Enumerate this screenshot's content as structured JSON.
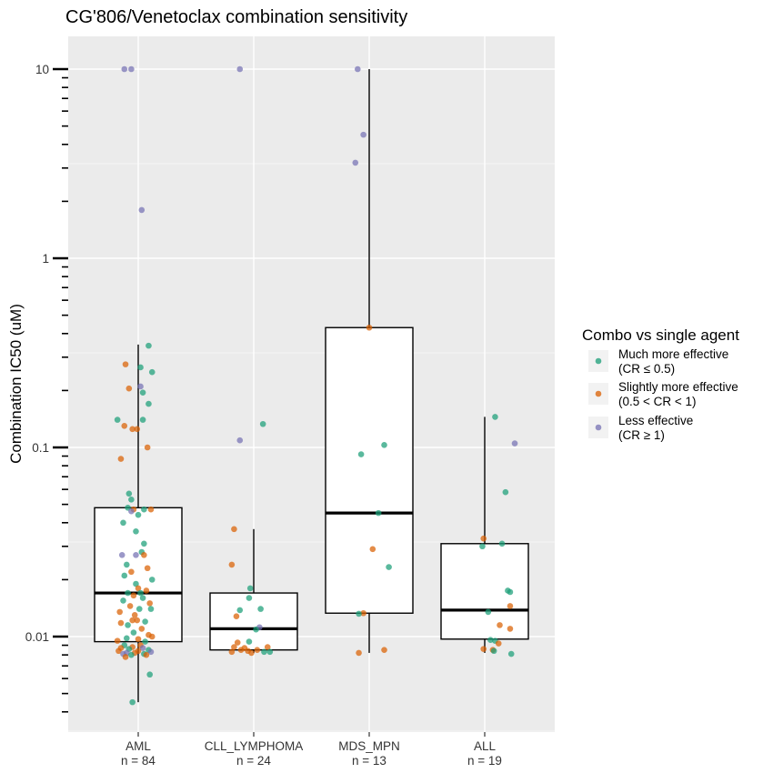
{
  "chart_data": {
    "type": "box",
    "title": "CG'806/Venetoclax combination sensitivity",
    "ylabel": "Combination IC50 (uM)",
    "xlabel": "",
    "yscale": "log10",
    "ylim": [
      0.003,
      13
    ],
    "y_ticks": [
      0.01,
      0.1,
      1,
      10
    ],
    "y_tick_labels": [
      "0.01",
      "0.1",
      "1",
      "10"
    ],
    "grid": true,
    "categories": [
      {
        "name": "AML",
        "n_label": "n = 84"
      },
      {
        "name": "CLL_LYMPHOMA",
        "n_label": "n = 24"
      },
      {
        "name": "MDS_MPN",
        "n_label": "n = 13"
      },
      {
        "name": "ALL",
        "n_label": "n = 19"
      }
    ],
    "boxes": [
      {
        "category": "AML",
        "q1": 0.0094,
        "median": 0.017,
        "q3": 0.048,
        "whisker_low": 0.0045,
        "whisker_high": 0.35
      },
      {
        "category": "CLL_LYMPHOMA",
        "q1": 0.0085,
        "median": 0.011,
        "q3": 0.017,
        "whisker_low": 0.0082,
        "whisker_high": 0.037
      },
      {
        "category": "MDS_MPN",
        "q1": 0.0133,
        "median": 0.045,
        "q3": 0.43,
        "whisker_low": 0.0082,
        "whisker_high": 10
      },
      {
        "category": "ALL",
        "q1": 0.0097,
        "median": 0.0138,
        "q3": 0.031,
        "whisker_low": 0.0082,
        "whisker_high": 0.145
      }
    ],
    "legend": {
      "title": "Combo vs single agent",
      "placement": "right",
      "entries": [
        {
          "key": "much",
          "label_line1": "Much more effective",
          "label_line2": "(CR ≤ 0.5)",
          "color": "#1b9e77"
        },
        {
          "key": "slightly",
          "label_line1": "Slightly more effective",
          "label_line2": "(0.5 < CR < 1)",
          "color": "#d95f02"
        },
        {
          "key": "less",
          "label_line1": "Less effective",
          "label_line2": "(CR ≥ 1)",
          "color": "#7570b3"
        }
      ]
    },
    "points": [
      {
        "cat": 0,
        "jitter": -0.12,
        "y": 10,
        "group": "less"
      },
      {
        "cat": 0,
        "jitter": -0.06,
        "y": 10,
        "group": "less"
      },
      {
        "cat": 0,
        "jitter": 0.03,
        "y": 1.8,
        "group": "less"
      },
      {
        "cat": 0,
        "jitter": 0.09,
        "y": 0.345,
        "group": "much"
      },
      {
        "cat": 0,
        "jitter": -0.11,
        "y": 0.275,
        "group": "slightly"
      },
      {
        "cat": 0,
        "jitter": 0.02,
        "y": 0.265,
        "group": "much"
      },
      {
        "cat": 0,
        "jitter": 0.12,
        "y": 0.25,
        "group": "much"
      },
      {
        "cat": 0,
        "jitter": 0.02,
        "y": 0.21,
        "group": "less"
      },
      {
        "cat": 0,
        "jitter": -0.08,
        "y": 0.205,
        "group": "slightly"
      },
      {
        "cat": 0,
        "jitter": 0.04,
        "y": 0.195,
        "group": "much"
      },
      {
        "cat": 0,
        "jitter": 0.09,
        "y": 0.17,
        "group": "much"
      },
      {
        "cat": 0,
        "jitter": -0.18,
        "y": 0.14,
        "group": "much"
      },
      {
        "cat": 0,
        "jitter": 0.04,
        "y": 0.14,
        "group": "much"
      },
      {
        "cat": 0,
        "jitter": -0.12,
        "y": 0.13,
        "group": "slightly"
      },
      {
        "cat": 0,
        "jitter": -0.05,
        "y": 0.125,
        "group": "slightly"
      },
      {
        "cat": 0,
        "jitter": -0.01,
        "y": 0.125,
        "group": "slightly"
      },
      {
        "cat": 0,
        "jitter": 0.08,
        "y": 0.1,
        "group": "slightly"
      },
      {
        "cat": 0,
        "jitter": -0.15,
        "y": 0.087,
        "group": "slightly"
      },
      {
        "cat": 0,
        "jitter": -0.08,
        "y": 0.057,
        "group": "much"
      },
      {
        "cat": 0,
        "jitter": -0.06,
        "y": 0.053,
        "group": "much"
      },
      {
        "cat": 0,
        "jitter": -0.09,
        "y": 0.048,
        "group": "much"
      },
      {
        "cat": 0,
        "jitter": -0.04,
        "y": 0.047,
        "group": "slightly"
      },
      {
        "cat": 0,
        "jitter": -0.06,
        "y": 0.046,
        "group": "less"
      },
      {
        "cat": 0,
        "jitter": 0.0,
        "y": 0.044,
        "group": "much"
      },
      {
        "cat": 0,
        "jitter": 0.05,
        "y": 0.047,
        "group": "much"
      },
      {
        "cat": 0,
        "jitter": -0.13,
        "y": 0.04,
        "group": "much"
      },
      {
        "cat": 0,
        "jitter": 0.11,
        "y": 0.047,
        "group": "slightly"
      },
      {
        "cat": 0,
        "jitter": -0.02,
        "y": 0.036,
        "group": "much"
      },
      {
        "cat": 0,
        "jitter": 0.05,
        "y": 0.031,
        "group": "much"
      },
      {
        "cat": 0,
        "jitter": 0.03,
        "y": 0.028,
        "group": "much"
      },
      {
        "cat": 0,
        "jitter": -0.14,
        "y": 0.027,
        "group": "less"
      },
      {
        "cat": 0,
        "jitter": -0.02,
        "y": 0.027,
        "group": "less"
      },
      {
        "cat": 0,
        "jitter": 0.05,
        "y": 0.027,
        "group": "slightly"
      },
      {
        "cat": 0,
        "jitter": -0.1,
        "y": 0.024,
        "group": "much"
      },
      {
        "cat": 0,
        "jitter": 0.08,
        "y": 0.023,
        "group": "slightly"
      },
      {
        "cat": 0,
        "jitter": -0.06,
        "y": 0.022,
        "group": "slightly"
      },
      {
        "cat": 0,
        "jitter": -0.12,
        "y": 0.021,
        "group": "much"
      },
      {
        "cat": 0,
        "jitter": 0.12,
        "y": 0.02,
        "group": "much"
      },
      {
        "cat": 0,
        "jitter": -0.02,
        "y": 0.019,
        "group": "much"
      },
      {
        "cat": 0,
        "jitter": 0.0,
        "y": 0.018,
        "group": "slightly"
      },
      {
        "cat": 0,
        "jitter": -0.09,
        "y": 0.017,
        "group": "much"
      },
      {
        "cat": 0,
        "jitter": 0.02,
        "y": 0.017,
        "group": "much"
      },
      {
        "cat": 0,
        "jitter": 0.07,
        "y": 0.0175,
        "group": "slightly"
      },
      {
        "cat": 0,
        "jitter": -0.04,
        "y": 0.0165,
        "group": "slightly"
      },
      {
        "cat": 0,
        "jitter": 0.04,
        "y": 0.016,
        "group": "much"
      },
      {
        "cat": 0,
        "jitter": -0.13,
        "y": 0.0155,
        "group": "much"
      },
      {
        "cat": 0,
        "jitter": 0.1,
        "y": 0.015,
        "group": "slightly"
      },
      {
        "cat": 0,
        "jitter": -0.07,
        "y": 0.0145,
        "group": "slightly"
      },
      {
        "cat": 0,
        "jitter": 0.01,
        "y": 0.014,
        "group": "much"
      },
      {
        "cat": 0,
        "jitter": 0.11,
        "y": 0.014,
        "group": "much"
      },
      {
        "cat": 0,
        "jitter": -0.16,
        "y": 0.0135,
        "group": "slightly"
      },
      {
        "cat": 0,
        "jitter": -0.03,
        "y": 0.013,
        "group": "slightly"
      },
      {
        "cat": 0,
        "jitter": -0.05,
        "y": 0.0122,
        "group": "slightly"
      },
      {
        "cat": 0,
        "jitter": -0.01,
        "y": 0.0122,
        "group": "slightly"
      },
      {
        "cat": 0,
        "jitter": 0.06,
        "y": 0.012,
        "group": "much"
      },
      {
        "cat": 0,
        "jitter": -0.15,
        "y": 0.0118,
        "group": "slightly"
      },
      {
        "cat": 0,
        "jitter": -0.09,
        "y": 0.0115,
        "group": "much"
      },
      {
        "cat": 0,
        "jitter": 0.03,
        "y": 0.011,
        "group": "slightly"
      },
      {
        "cat": 0,
        "jitter": -0.04,
        "y": 0.0105,
        "group": "much"
      },
      {
        "cat": 0,
        "jitter": 0.09,
        "y": 0.0102,
        "group": "slightly"
      },
      {
        "cat": 0,
        "jitter": 0.12,
        "y": 0.01,
        "group": "slightly"
      },
      {
        "cat": 0,
        "jitter": -0.1,
        "y": 0.0098,
        "group": "much"
      },
      {
        "cat": 0,
        "jitter": 0.0,
        "y": 0.0097,
        "group": "slightly"
      },
      {
        "cat": 0,
        "jitter": -0.18,
        "y": 0.0095,
        "group": "slightly"
      },
      {
        "cat": 0,
        "jitter": 0.06,
        "y": 0.0094,
        "group": "much"
      },
      {
        "cat": 0,
        "jitter": -0.12,
        "y": 0.009,
        "group": "much"
      },
      {
        "cat": 0,
        "jitter": 0.02,
        "y": 0.009,
        "group": "slightly"
      },
      {
        "cat": 0,
        "jitter": -0.05,
        "y": 0.0088,
        "group": "slightly"
      },
      {
        "cat": 0,
        "jitter": -0.15,
        "y": 0.0087,
        "group": "slightly"
      },
      {
        "cat": 0,
        "jitter": 0.04,
        "y": 0.0087,
        "group": "less"
      },
      {
        "cat": 0,
        "jitter": -0.08,
        "y": 0.0086,
        "group": "much"
      },
      {
        "cat": 0,
        "jitter": 0.09,
        "y": 0.0085,
        "group": "much"
      },
      {
        "cat": 0,
        "jitter": -0.17,
        "y": 0.0084,
        "group": "slightly"
      },
      {
        "cat": 0,
        "jitter": 0.0,
        "y": 0.0084,
        "group": "slightly"
      },
      {
        "cat": 0,
        "jitter": 0.11,
        "y": 0.0083,
        "group": "less"
      },
      {
        "cat": 0,
        "jitter": -0.1,
        "y": 0.0082,
        "group": "less"
      },
      {
        "cat": 0,
        "jitter": -0.03,
        "y": 0.0082,
        "group": "slightly"
      },
      {
        "cat": 0,
        "jitter": 0.05,
        "y": 0.0081,
        "group": "much"
      },
      {
        "cat": 0,
        "jitter": -0.13,
        "y": 0.0081,
        "group": "less"
      },
      {
        "cat": 0,
        "jitter": -0.06,
        "y": 0.008,
        "group": "much"
      },
      {
        "cat": 0,
        "jitter": 0.07,
        "y": 0.008,
        "group": "slightly"
      },
      {
        "cat": 0,
        "jitter": -0.11,
        "y": 0.0078,
        "group": "slightly"
      },
      {
        "cat": 0,
        "jitter": 0.1,
        "y": 0.0063,
        "group": "much"
      },
      {
        "cat": 0,
        "jitter": -0.05,
        "y": 0.0045,
        "group": "much"
      },
      {
        "cat": 1,
        "jitter": -0.12,
        "y": 10,
        "group": "less"
      },
      {
        "cat": 1,
        "jitter": 0.08,
        "y": 0.133,
        "group": "much"
      },
      {
        "cat": 1,
        "jitter": -0.12,
        "y": 0.109,
        "group": "less"
      },
      {
        "cat": 1,
        "jitter": -0.17,
        "y": 0.037,
        "group": "slightly"
      },
      {
        "cat": 1,
        "jitter": -0.19,
        "y": 0.024,
        "group": "slightly"
      },
      {
        "cat": 1,
        "jitter": -0.03,
        "y": 0.018,
        "group": "much"
      },
      {
        "cat": 1,
        "jitter": -0.04,
        "y": 0.016,
        "group": "much"
      },
      {
        "cat": 1,
        "jitter": -0.12,
        "y": 0.0138,
        "group": "much"
      },
      {
        "cat": 1,
        "jitter": 0.06,
        "y": 0.014,
        "group": "much"
      },
      {
        "cat": 1,
        "jitter": -0.15,
        "y": 0.0128,
        "group": "slightly"
      },
      {
        "cat": 1,
        "jitter": 0.05,
        "y": 0.0112,
        "group": "less"
      },
      {
        "cat": 1,
        "jitter": 0.02,
        "y": 0.0109,
        "group": "much"
      },
      {
        "cat": 1,
        "jitter": -0.14,
        "y": 0.0093,
        "group": "slightly"
      },
      {
        "cat": 1,
        "jitter": -0.04,
        "y": 0.0094,
        "group": "much"
      },
      {
        "cat": 1,
        "jitter": -0.17,
        "y": 0.0088,
        "group": "slightly"
      },
      {
        "cat": 1,
        "jitter": -0.08,
        "y": 0.0087,
        "group": "slightly"
      },
      {
        "cat": 1,
        "jitter": 0.12,
        "y": 0.0088,
        "group": "slightly"
      },
      {
        "cat": 1,
        "jitter": -0.11,
        "y": 0.0085,
        "group": "slightly"
      },
      {
        "cat": 1,
        "jitter": -0.05,
        "y": 0.0084,
        "group": "slightly"
      },
      {
        "cat": 1,
        "jitter": 0.03,
        "y": 0.0085,
        "group": "slightly"
      },
      {
        "cat": 1,
        "jitter": 0.09,
        "y": 0.0083,
        "group": "much"
      },
      {
        "cat": 1,
        "jitter": -0.19,
        "y": 0.0083,
        "group": "slightly"
      },
      {
        "cat": 1,
        "jitter": 0.14,
        "y": 0.0083,
        "group": "much"
      },
      {
        "cat": 1,
        "jitter": -0.02,
        "y": 0.0082,
        "group": "slightly"
      },
      {
        "cat": 2,
        "jitter": -0.1,
        "y": 10,
        "group": "less"
      },
      {
        "cat": 2,
        "jitter": -0.05,
        "y": 4.5,
        "group": "less"
      },
      {
        "cat": 2,
        "jitter": -0.12,
        "y": 3.2,
        "group": "less"
      },
      {
        "cat": 2,
        "jitter": 0.0,
        "y": 0.43,
        "group": "slightly"
      },
      {
        "cat": 2,
        "jitter": 0.13,
        "y": 0.103,
        "group": "much"
      },
      {
        "cat": 2,
        "jitter": -0.07,
        "y": 0.092,
        "group": "much"
      },
      {
        "cat": 2,
        "jitter": 0.08,
        "y": 0.045,
        "group": "much"
      },
      {
        "cat": 2,
        "jitter": 0.03,
        "y": 0.029,
        "group": "slightly"
      },
      {
        "cat": 2,
        "jitter": 0.17,
        "y": 0.0233,
        "group": "much"
      },
      {
        "cat": 2,
        "jitter": -0.05,
        "y": 0.0133,
        "group": "slightly"
      },
      {
        "cat": 2,
        "jitter": -0.09,
        "y": 0.0132,
        "group": "much"
      },
      {
        "cat": 2,
        "jitter": 0.13,
        "y": 0.0085,
        "group": "slightly"
      },
      {
        "cat": 2,
        "jitter": -0.09,
        "y": 0.0082,
        "group": "slightly"
      },
      {
        "cat": 3,
        "jitter": 0.26,
        "y": 0.105,
        "group": "less"
      },
      {
        "cat": 3,
        "jitter": 0.09,
        "y": 0.145,
        "group": "much"
      },
      {
        "cat": 3,
        "jitter": 0.18,
        "y": 0.058,
        "group": "much"
      },
      {
        "cat": 3,
        "jitter": -0.01,
        "y": 0.033,
        "group": "slightly"
      },
      {
        "cat": 3,
        "jitter": 0.15,
        "y": 0.031,
        "group": "much"
      },
      {
        "cat": 3,
        "jitter": -0.02,
        "y": 0.03,
        "group": "much"
      },
      {
        "cat": 3,
        "jitter": 0.2,
        "y": 0.0175,
        "group": "much"
      },
      {
        "cat": 3,
        "jitter": 0.22,
        "y": 0.0172,
        "group": "much"
      },
      {
        "cat": 3,
        "jitter": 0.22,
        "y": 0.0145,
        "group": "slightly"
      },
      {
        "cat": 3,
        "jitter": 0.03,
        "y": 0.0135,
        "group": "much"
      },
      {
        "cat": 3,
        "jitter": 0.13,
        "y": 0.0115,
        "group": "slightly"
      },
      {
        "cat": 3,
        "jitter": 0.22,
        "y": 0.011,
        "group": "slightly"
      },
      {
        "cat": 3,
        "jitter": 0.05,
        "y": 0.0096,
        "group": "much"
      },
      {
        "cat": 3,
        "jitter": 0.09,
        "y": 0.0095,
        "group": "much"
      },
      {
        "cat": 3,
        "jitter": 0.12,
        "y": 0.0092,
        "group": "slightly"
      },
      {
        "cat": 3,
        "jitter": -0.01,
        "y": 0.0086,
        "group": "slightly"
      },
      {
        "cat": 3,
        "jitter": 0.07,
        "y": 0.0085,
        "group": "slightly"
      },
      {
        "cat": 3,
        "jitter": 0.23,
        "y": 0.0081,
        "group": "much"
      },
      {
        "cat": 3,
        "jitter": 0.08,
        "y": 0.0084,
        "group": "much"
      }
    ]
  }
}
